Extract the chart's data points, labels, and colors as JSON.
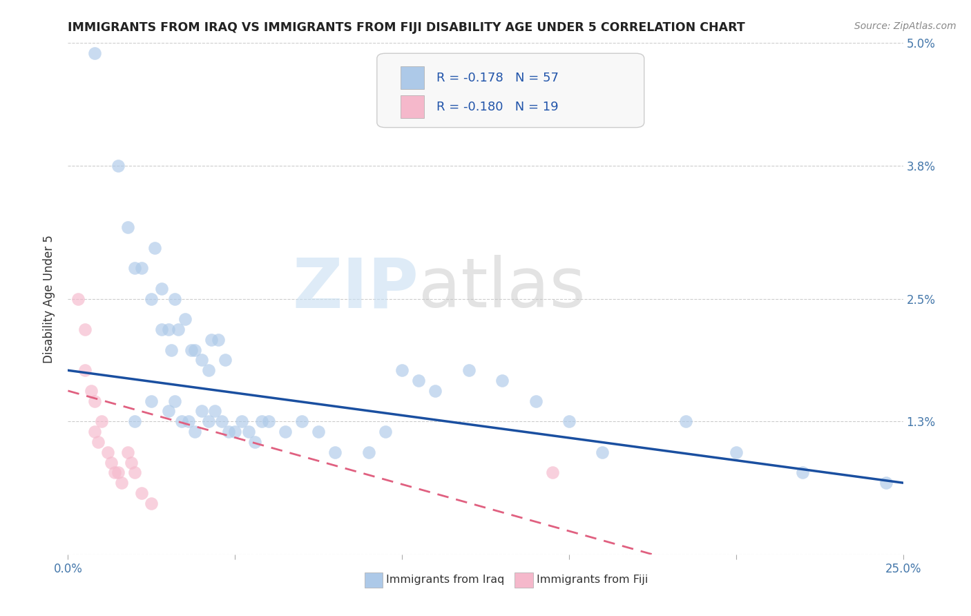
{
  "title": "IMMIGRANTS FROM IRAQ VS IMMIGRANTS FROM FIJI DISABILITY AGE UNDER 5 CORRELATION CHART",
  "source": "Source: ZipAtlas.com",
  "ylabel": "Disability Age Under 5",
  "xlim": [
    0.0,
    0.25
  ],
  "ylim": [
    0.0,
    0.05
  ],
  "xticks": [
    0.0,
    0.05,
    0.1,
    0.15,
    0.2,
    0.25
  ],
  "xticklabels": [
    "0.0%",
    "",
    "",
    "",
    "",
    "25.0%"
  ],
  "ytick_positions": [
    0.0,
    0.013,
    0.025,
    0.038,
    0.05
  ],
  "ytick_labels": [
    "",
    "1.3%",
    "2.5%",
    "3.8%",
    "5.0%"
  ],
  "color_iraq": "#adc9e8",
  "color_fiji": "#f5b8cb",
  "line_color_iraq": "#1a4fa0",
  "line_color_fiji": "#e06080",
  "watermark_zip": "ZIP",
  "watermark_atlas": "atlas",
  "legend_text_iraq": "R = -0.178   N = 57",
  "legend_text_fiji": "R = -0.180   N = 19",
  "legend_label_iraq": "Immigrants from Iraq",
  "legend_label_fiji": "Immigrants from Fiji",
  "background_color": "#ffffff",
  "grid_color": "#cccccc",
  "iraq_x": [
    0.008,
    0.015,
    0.018,
    0.02,
    0.022,
    0.025,
    0.026,
    0.028,
    0.028,
    0.03,
    0.031,
    0.032,
    0.033,
    0.035,
    0.037,
    0.038,
    0.04,
    0.042,
    0.043,
    0.045,
    0.047,
    0.02,
    0.025,
    0.03,
    0.032,
    0.034,
    0.036,
    0.038,
    0.04,
    0.042,
    0.044,
    0.046,
    0.048,
    0.05,
    0.052,
    0.054,
    0.056,
    0.058,
    0.06,
    0.065,
    0.07,
    0.075,
    0.08,
    0.09,
    0.095,
    0.1,
    0.105,
    0.11,
    0.12,
    0.13,
    0.14,
    0.15,
    0.16,
    0.185,
    0.2,
    0.22,
    0.245
  ],
  "iraq_y": [
    0.049,
    0.038,
    0.032,
    0.028,
    0.028,
    0.025,
    0.03,
    0.026,
    0.022,
    0.022,
    0.02,
    0.025,
    0.022,
    0.023,
    0.02,
    0.02,
    0.019,
    0.018,
    0.021,
    0.021,
    0.019,
    0.013,
    0.015,
    0.014,
    0.015,
    0.013,
    0.013,
    0.012,
    0.014,
    0.013,
    0.014,
    0.013,
    0.012,
    0.012,
    0.013,
    0.012,
    0.011,
    0.013,
    0.013,
    0.012,
    0.013,
    0.012,
    0.01,
    0.01,
    0.012,
    0.018,
    0.017,
    0.016,
    0.018,
    0.017,
    0.015,
    0.013,
    0.01,
    0.013,
    0.01,
    0.008,
    0.007
  ],
  "fiji_x": [
    0.003,
    0.005,
    0.005,
    0.007,
    0.008,
    0.008,
    0.009,
    0.01,
    0.012,
    0.013,
    0.014,
    0.015,
    0.016,
    0.018,
    0.019,
    0.02,
    0.022,
    0.025,
    0.145
  ],
  "fiji_y": [
    0.025,
    0.022,
    0.018,
    0.016,
    0.015,
    0.012,
    0.011,
    0.013,
    0.01,
    0.009,
    0.008,
    0.008,
    0.007,
    0.01,
    0.009,
    0.008,
    0.006,
    0.005,
    0.008
  ],
  "iraq_line_x": [
    0.0,
    0.25
  ],
  "iraq_line_y": [
    0.018,
    0.007
  ],
  "fiji_line_x": [
    0.0,
    0.175
  ],
  "fiji_line_y": [
    0.016,
    0.0
  ]
}
